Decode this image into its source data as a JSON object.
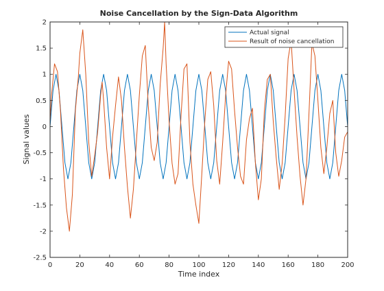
{
  "chart_data": {
    "type": "line",
    "title": "Noise Cancellation by the Sign-Data Algorithm",
    "xlabel": "Time index",
    "ylabel": "Signal values",
    "xlim": [
      0,
      200
    ],
    "ylim": [
      -2.5,
      2
    ],
    "xticks": [
      "0",
      "20",
      "40",
      "60",
      "80",
      "100",
      "120",
      "140",
      "160",
      "180",
      "200"
    ],
    "yticks": [
      "-2.5",
      "-2",
      "-1.5",
      "-1",
      "-0.5",
      "0",
      "0.5",
      "1",
      "1.5",
      "2"
    ],
    "grid": false,
    "legend_position": "top-right",
    "series": [
      {
        "name": "Actual signal",
        "color": "#0072BD",
        "x": [
          0,
          2,
          4,
          6,
          8,
          10,
          12,
          14,
          16,
          18,
          20,
          22,
          24,
          26,
          28,
          30,
          32,
          34,
          36,
          38,
          40,
          42,
          44,
          46,
          48,
          50,
          52,
          54,
          56,
          58,
          60,
          62,
          64,
          66,
          68,
          70,
          72,
          74,
          76,
          78,
          80,
          82,
          84,
          86,
          88,
          90,
          92,
          94,
          96,
          98,
          100,
          102,
          104,
          106,
          108,
          110,
          112,
          114,
          116,
          118,
          120,
          122,
          124,
          126,
          128,
          130,
          132,
          134,
          136,
          138,
          140,
          142,
          144,
          146,
          148,
          150,
          152,
          154,
          156,
          158,
          160,
          162,
          164,
          166,
          168,
          170,
          172,
          174,
          176,
          178,
          180,
          182,
          184,
          186,
          188,
          190,
          192,
          194,
          196,
          198,
          200
        ],
        "y": [
          0,
          0.69,
          1.0,
          0.69,
          0,
          -0.69,
          -1.0,
          -0.69,
          0,
          0.69,
          1.0,
          0.69,
          0,
          -0.69,
          -1.0,
          -0.69,
          0,
          0.69,
          1.0,
          0.69,
          0,
          -0.69,
          -1.0,
          -0.69,
          0,
          0.69,
          1.0,
          0.69,
          0,
          -0.69,
          -1.0,
          -0.69,
          0,
          0.69,
          1.0,
          0.69,
          0,
          -0.69,
          -1.0,
          -0.69,
          0,
          0.69,
          1.0,
          0.69,
          0,
          -0.69,
          -1.0,
          -0.69,
          0,
          0.69,
          1.0,
          0.69,
          0,
          -0.69,
          -1.0,
          -0.69,
          0,
          0.69,
          1.0,
          0.69,
          0,
          -0.69,
          -1.0,
          -0.69,
          0,
          0.69,
          1.0,
          0.69,
          0,
          -0.69,
          -1.0,
          -0.69,
          0,
          0.69,
          1.0,
          0.69,
          0,
          -0.69,
          -1.0,
          -0.69,
          0,
          0.69,
          1.0,
          0.69,
          0,
          -0.69,
          -1.0,
          -0.69,
          0,
          0.69,
          1.0,
          0.69,
          0,
          -0.69,
          -1.0,
          -0.69,
          0,
          0.69,
          1.0,
          0.69,
          0
        ]
      },
      {
        "name": "Result of noise cancellation",
        "color": "#D95319",
        "x": [
          0,
          1,
          3,
          5,
          7,
          9,
          11,
          13,
          15,
          17,
          19,
          20,
          22,
          24,
          26,
          28,
          30,
          32,
          34,
          35,
          36,
          38,
          40,
          42,
          44,
          46,
          48,
          50,
          52,
          54,
          56,
          58,
          60,
          62,
          64,
          66,
          68,
          70,
          72,
          74,
          76,
          77,
          78,
          80,
          82,
          84,
          86,
          88,
          90,
          92,
          94,
          96,
          98,
          100,
          102,
          104,
          106,
          108,
          110,
          112,
          114,
          116,
          118,
          120,
          122,
          124,
          126,
          128,
          130,
          132,
          134,
          136,
          138,
          140,
          142,
          144,
          146,
          148,
          150,
          152,
          154,
          156,
          158,
          160,
          162,
          164,
          166,
          168,
          170,
          172,
          174,
          176,
          178,
          180,
          182,
          184,
          186,
          188,
          190,
          192,
          194,
          196,
          198,
          200
        ],
        "y": [
          0.1,
          0.6,
          1.2,
          1.05,
          0.3,
          -0.8,
          -1.55,
          -2.0,
          -1.3,
          0.3,
          0.95,
          1.4,
          1.85,
          1.0,
          -0.3,
          -0.95,
          -0.55,
          -0.1,
          0.6,
          0.85,
          0.5,
          -0.4,
          -1.0,
          -0.2,
          0.4,
          0.95,
          0.5,
          -0.4,
          -1.15,
          -1.75,
          -1.2,
          -0.3,
          0.6,
          1.35,
          1.55,
          0.4,
          -0.4,
          -0.65,
          -0.3,
          0.8,
          1.5,
          2.0,
          1.2,
          0.1,
          -0.7,
          -1.1,
          -0.9,
          0.2,
          1.1,
          1.2,
          -0.3,
          -1.1,
          -1.5,
          -1.85,
          -0.9,
          0.1,
          0.9,
          1.05,
          0.4,
          -0.65,
          -1.1,
          -0.3,
          0.6,
          1.25,
          1.1,
          0.3,
          -0.4,
          -0.95,
          -1.1,
          -0.25,
          0.15,
          0.35,
          -0.7,
          -1.4,
          -1.0,
          0.3,
          0.9,
          1.0,
          0.1,
          -0.6,
          -1.2,
          -0.7,
          0.2,
          1.3,
          1.65,
          0.7,
          -0.2,
          -0.95,
          -1.5,
          -1.0,
          0.25,
          1.6,
          1.35,
          0.5,
          -0.4,
          -0.9,
          -0.4,
          0.25,
          0.5,
          -0.5,
          -0.95,
          -0.65,
          -0.2,
          -0.1
        ]
      }
    ]
  }
}
